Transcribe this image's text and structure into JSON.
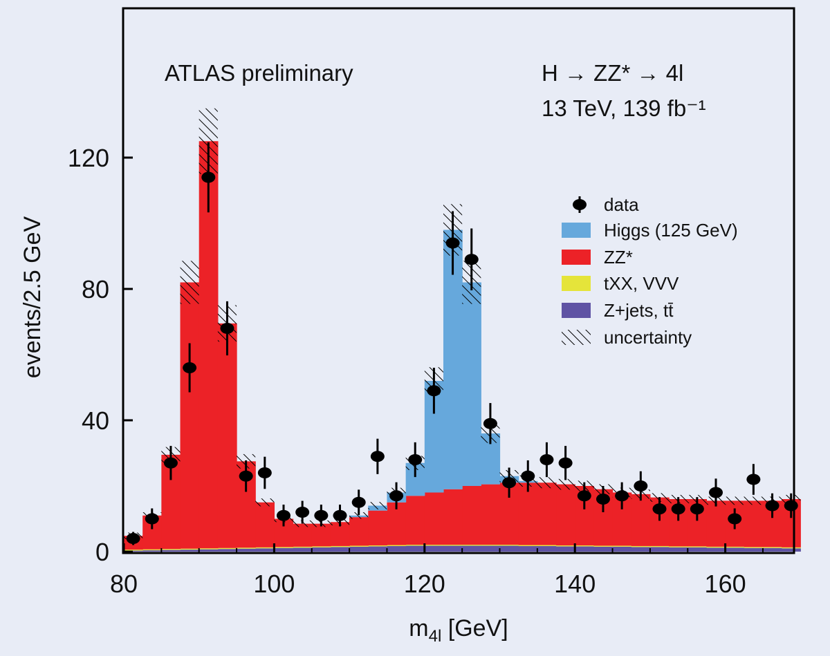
{
  "chart_data": {
    "type": "bar",
    "subtype": "stacked-histogram-with-data-points",
    "title_left": "ATLAS preliminary",
    "title_right_line1": "H → ZZ* → 4l",
    "title_right_line2": "13 TeV, 139 fb⁻¹",
    "xlabel": "m4l [GeV]",
    "xlabel_main": "m",
    "xlabel_sub": "4l",
    "xlabel_unit": " [GeV]",
    "ylabel": "events/2.5 GeV",
    "xlim": [
      80,
      170
    ],
    "ylim": [
      0,
      165
    ],
    "bin_width": 2.5,
    "xticks": [
      80,
      100,
      120,
      140,
      160
    ],
    "yticks": [
      0,
      40,
      80,
      120
    ],
    "legend_position": "right",
    "colors": {
      "higgs": "#66a8dc",
      "zz": "#ec2227",
      "txx": "#e5e43a",
      "zjets": "#5f53a4",
      "data": "#000000",
      "background": "#e8ecf6"
    },
    "legend": [
      {
        "key": "data",
        "label": "data"
      },
      {
        "key": "higgs",
        "label": "Higgs (125 GeV)"
      },
      {
        "key": "zz",
        "label": "ZZ*"
      },
      {
        "key": "txx",
        "label": "tXX, VVV"
      },
      {
        "key": "zjets",
        "label": "Z+jets, tt̄"
      },
      {
        "key": "uncertainty",
        "label": "uncertainty"
      }
    ],
    "uncertainty_fraction": 0.08,
    "series": [
      {
        "name": "Z+jets, tt̄",
        "key": "zjets",
        "values": [
          0.3,
          0.4,
          0.5,
          0.6,
          0.7,
          0.8,
          0.9,
          1.0,
          1.1,
          1.2,
          1.3,
          1.4,
          1.5,
          1.6,
          1.7,
          1.8,
          1.8,
          1.8,
          1.8,
          1.8,
          1.8,
          1.7,
          1.7,
          1.6,
          1.6,
          1.5,
          1.5,
          1.4,
          1.4,
          1.3,
          1.3,
          1.2,
          1.2,
          1.1,
          1.1,
          1.0
        ]
      },
      {
        "name": "tXX, VVV",
        "key": "txx",
        "values": [
          0.3,
          0.3,
          0.3,
          0.3,
          0.3,
          0.3,
          0.3,
          0.3,
          0.3,
          0.3,
          0.3,
          0.3,
          0.3,
          0.3,
          0.3,
          0.3,
          0.3,
          0.3,
          0.3,
          0.3,
          0.3,
          0.3,
          0.3,
          0.3,
          0.3,
          0.3,
          0.3,
          0.3,
          0.3,
          0.3,
          0.3,
          0.3,
          0.3,
          0.3,
          0.3,
          0.3
        ]
      },
      {
        "name": "ZZ*",
        "key": "zz",
        "values": [
          4.2,
          10.3,
          28.7,
          81.1,
          124,
          68.4,
          26.3,
          13.7,
          8.6,
          7.0,
          6.9,
          7.3,
          8.7,
          10.6,
          13.0,
          14.9,
          15.9,
          16.9,
          17.9,
          18.4,
          18.9,
          19.0,
          19.0,
          18.6,
          18.1,
          17.2,
          16.2,
          15.8,
          14.8,
          14.4,
          14.4,
          14.0,
          14.0,
          14.1,
          14.1,
          14.7
        ]
      },
      {
        "name": "Higgs (125 GeV)",
        "key": "higgs",
        "values": [
          0,
          0,
          0,
          0,
          0,
          0,
          0,
          0,
          0,
          0,
          0,
          0,
          0.5,
          1.5,
          3,
          10,
          34,
          79,
          62,
          15.5,
          2,
          0.5,
          0,
          0,
          0,
          0,
          0,
          0,
          0,
          0,
          0,
          0,
          0,
          0,
          0,
          0
        ]
      }
    ],
    "data_points": {
      "x": [
        81.25,
        83.75,
        86.25,
        88.75,
        91.25,
        93.75,
        96.25,
        98.75,
        101.25,
        103.75,
        106.25,
        108.75,
        111.25,
        113.75,
        116.25,
        118.75,
        121.25,
        123.75,
        126.25,
        128.75,
        131.25,
        133.75,
        136.25,
        138.75,
        141.25,
        143.75,
        146.25,
        148.75,
        151.25,
        153.75,
        156.25,
        158.75,
        161.25,
        163.75,
        166.25,
        168.75
      ],
      "y": [
        4,
        10,
        27,
        56,
        114,
        68,
        23,
        24,
        11,
        12,
        11,
        11,
        15,
        29,
        17,
        28,
        49,
        94,
        89,
        39,
        21,
        23,
        28,
        27,
        17,
        16,
        17,
        20,
        13,
        13,
        13,
        18,
        10,
        22,
        14,
        14
      ]
    }
  }
}
